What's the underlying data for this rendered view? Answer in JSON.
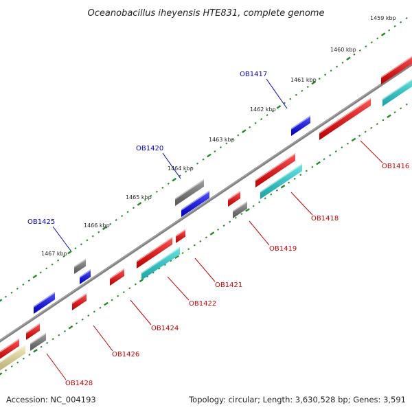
{
  "title": "Oceanobacillus iheyensis HTE831, complete genome",
  "footer": {
    "accession": "Accession: NC_004193",
    "topology": "Topology: circular; Length: 3,630,528 bp; Genes: 3,591"
  },
  "colors": {
    "backbone": "#808080",
    "tick_dots": "#228B22",
    "label_above": "#0000cc",
    "label_below": "#cc0000",
    "red_gene": "#ff0000",
    "blue_gene": "#0000ff",
    "gray_gene": "#777777",
    "cyan_gene": "#22dddd",
    "yellow_gene": "#f5eba0"
  },
  "kbp_labels": [
    "1459 kbp",
    "1460 kbp",
    "1461 kbp",
    "1462 kbp",
    "1463 kbp",
    "1464 kbp",
    "1465 kbp",
    "1466 kbp",
    "1467 kbp"
  ],
  "labels_above": [
    "OB1417",
    "OB1420",
    "OB1425"
  ],
  "labels_below": [
    "OB1416",
    "OB1418",
    "OB1419",
    "OB1421",
    "OB1422",
    "OB1424",
    "OB1426",
    "OB1428"
  ]
}
